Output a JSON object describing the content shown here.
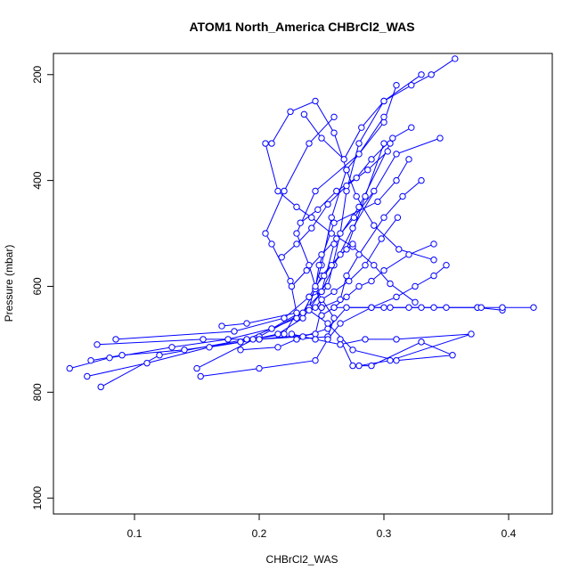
{
  "chart_data": {
    "type": "line",
    "title": "ATOM1 North_America CHBrCl2_WAS",
    "xlabel": "CHBrCl2_WAS",
    "ylabel": "Pressure (mbar)",
    "xlim": [
      0.035,
      0.435
    ],
    "ylim": [
      1030,
      160
    ],
    "y_reversed": true,
    "x_ticks": [
      0.1,
      0.2,
      0.3,
      0.4
    ],
    "x_tick_labels": [
      "0.1",
      "0.2",
      "0.3",
      "0.4"
    ],
    "y_ticks": [
      200,
      400,
      600,
      800,
      1000
    ],
    "y_tick_labels": [
      "200",
      "400",
      "600",
      "800",
      "1000"
    ],
    "grid": false,
    "legend": "none",
    "series_color": "#0000ff",
    "series": [
      {
        "x": [
          0.073,
          0.12,
          0.19,
          0.23,
          0.255,
          0.265,
          0.27,
          0.28,
          0.3,
          0.33
        ],
        "y": [
          790,
          730,
          700,
          660,
          600,
          500,
          420,
          330,
          250,
          200
        ]
      },
      {
        "x": [
          0.048,
          0.08,
          0.13,
          0.175,
          0.21,
          0.24,
          0.25,
          0.258,
          0.27,
          0.3,
          0.31
        ],
        "y": [
          755,
          735,
          715,
          700,
          680,
          640,
          560,
          470,
          380,
          290,
          220
        ]
      },
      {
        "x": [
          0.065,
          0.09,
          0.14,
          0.185,
          0.215,
          0.235,
          0.25,
          0.26,
          0.28,
          0.305
        ],
        "y": [
          740,
          730,
          720,
          705,
          690,
          660,
          610,
          520,
          450,
          330
        ]
      },
      {
        "x": [
          0.062,
          0.11,
          0.16,
          0.2,
          0.245,
          0.25,
          0.24,
          0.23,
          0.245,
          0.28,
          0.3
        ],
        "y": [
          770,
          745,
          715,
          700,
          690,
          640,
          560,
          500,
          420,
          350,
          280
        ]
      },
      {
        "x": [
          0.07,
          0.155,
          0.195,
          0.22,
          0.23,
          0.225,
          0.21,
          0.205,
          0.22,
          0.24,
          0.26
        ],
        "y": [
          710,
          700,
          700,
          690,
          650,
          590,
          520,
          500,
          420,
          330,
          280
        ]
      },
      {
        "x": [
          0.15,
          0.2,
          0.235,
          0.245,
          0.248,
          0.26,
          0.295,
          0.31,
          0.32
        ],
        "y": [
          755,
          695,
          650,
          605,
          560,
          480,
          440,
          400,
          360
        ]
      },
      {
        "x": [
          0.085,
          0.18,
          0.22,
          0.24,
          0.25,
          0.26,
          0.275,
          0.31,
          0.345
        ],
        "y": [
          700,
          685,
          660,
          620,
          610,
          560,
          490,
          350,
          320
        ]
      },
      {
        "x": [
          0.17,
          0.19,
          0.25,
          0.265,
          0.27,
          0.28,
          0.3,
          0.315,
          0.33
        ],
        "y": [
          675,
          670,
          640,
          625,
          580,
          540,
          470,
          430,
          400
        ]
      },
      {
        "x": [
          0.185,
          0.215,
          0.23,
          0.255,
          0.26,
          0.245,
          0.25,
          0.27,
          0.285,
          0.3
        ],
        "y": [
          720,
          715,
          700,
          695,
          660,
          605,
          580,
          530,
          430,
          330
        ]
      },
      {
        "x": [
          0.153,
          0.2,
          0.245,
          0.255,
          0.265,
          0.29,
          0.31,
          0.325,
          0.34,
          0.35
        ],
        "y": [
          770,
          755,
          740,
          700,
          670,
          640,
          620,
          600,
          580,
          560
        ]
      },
      {
        "x": [
          0.2,
          0.235,
          0.255,
          0.27,
          0.29,
          0.32,
          0.35,
          0.375,
          0.395
        ],
        "y": [
          700,
          695,
          680,
          640,
          640,
          640,
          640,
          640,
          645
        ]
      },
      {
        "x": [
          0.26,
          0.3,
          0.34,
          0.375,
          0.42,
          0.395,
          0.378,
          0.33,
          0.305
        ],
        "y": [
          640,
          640,
          640,
          640,
          640,
          640,
          640,
          640,
          640
        ]
      },
      {
        "x": [
          0.24,
          0.255,
          0.275,
          0.31,
          0.355,
          0.33,
          0.29,
          0.275,
          0.265
        ],
        "y": [
          645,
          670,
          720,
          740,
          730,
          705,
          750,
          750,
          700
        ]
      },
      {
        "x": [
          0.226,
          0.245,
          0.265,
          0.285,
          0.31,
          0.37,
          0.305,
          0.28
        ],
        "y": [
          690,
          700,
          710,
          700,
          700,
          690,
          740,
          750
        ]
      },
      {
        "x": [
          0.236,
          0.25,
          0.268,
          0.282,
          0.3,
          0.322,
          0.338,
          0.357
        ],
        "y": [
          275,
          320,
          360,
          300,
          250,
          220,
          200,
          170
        ]
      },
      {
        "x": [
          0.21,
          0.225,
          0.245,
          0.26,
          0.27,
          0.278,
          0.292,
          0.312,
          0.34
        ],
        "y": [
          330,
          270,
          250,
          310,
          380,
          430,
          485,
          530,
          550
        ]
      },
      {
        "x": [
          0.205,
          0.215,
          0.23,
          0.242,
          0.258,
          0.275,
          0.292,
          0.305,
          0.325
        ],
        "y": [
          330,
          420,
          450,
          470,
          500,
          525,
          560,
          595,
          630
        ]
      },
      {
        "x": [
          0.233,
          0.247,
          0.262,
          0.278,
          0.29,
          0.307,
          0.322
        ],
        "y": [
          480,
          455,
          420,
          395,
          360,
          320,
          300
        ]
      },
      {
        "x": [
          0.218,
          0.23,
          0.242,
          0.255,
          0.27,
          0.287,
          0.303
        ],
        "y": [
          545,
          520,
          490,
          445,
          410,
          380,
          345
        ]
      },
      {
        "x": [
          0.226,
          0.238,
          0.25,
          0.262,
          0.276,
          0.292
        ],
        "y": [
          600,
          570,
          540,
          510,
          470,
          420
        ]
      },
      {
        "x": [
          0.24,
          0.245,
          0.252,
          0.258,
          0.265,
          0.275
        ],
        "y": [
          620,
          600,
          580,
          560,
          540,
          520
        ]
      },
      {
        "x": [
          0.245,
          0.25,
          0.26,
          0.272,
          0.285,
          0.298,
          0.311
        ],
        "y": [
          640,
          625,
          610,
          590,
          560,
          510,
          470
        ]
      },
      {
        "x": [
          0.25,
          0.26,
          0.27,
          0.28,
          0.29,
          0.3,
          0.32,
          0.34
        ],
        "y": [
          655,
          640,
          620,
          600,
          590,
          570,
          540,
          520
        ]
      }
    ]
  }
}
